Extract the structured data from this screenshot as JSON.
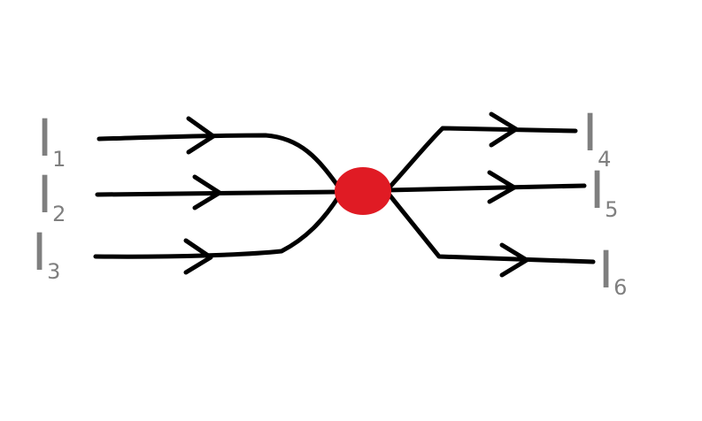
{
  "colors": {
    "background": "#ffffff",
    "wire": "#000000",
    "node": "#e01b24",
    "label": "#7f7f7f"
  },
  "node": {
    "name": "junction"
  },
  "currents": [
    {
      "id": "I1",
      "symbol": "I",
      "subscript": "1",
      "direction": "incoming"
    },
    {
      "id": "I2",
      "symbol": "I",
      "subscript": "2",
      "direction": "incoming"
    },
    {
      "id": "I3",
      "symbol": "I",
      "subscript": "3",
      "direction": "incoming"
    },
    {
      "id": "I4",
      "symbol": "I",
      "subscript": "4",
      "direction": "outgoing"
    },
    {
      "id": "I5",
      "symbol": "I",
      "subscript": "5",
      "direction": "outgoing"
    },
    {
      "id": "I6",
      "symbol": "I",
      "subscript": "6",
      "direction": "outgoing"
    }
  ]
}
